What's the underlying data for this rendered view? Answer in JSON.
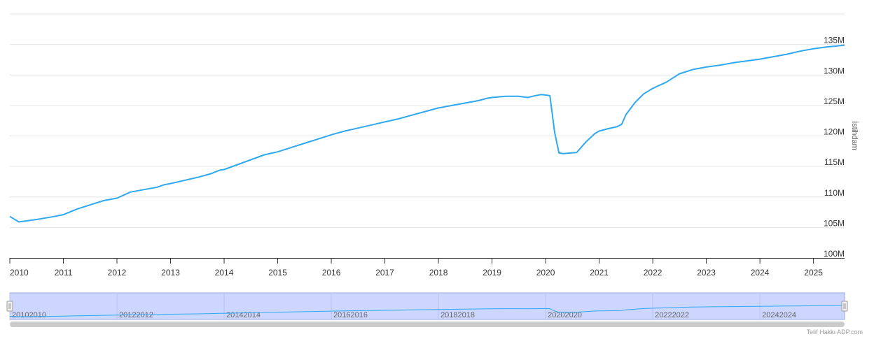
{
  "chart_data": {
    "type": "line",
    "title": "",
    "xlabel": "",
    "ylabel": "İstihdam",
    "x_tick_labels": [
      "2010",
      "2011",
      "2012",
      "2013",
      "2014",
      "2015",
      "2016",
      "2017",
      "2018",
      "2019",
      "2020",
      "2021",
      "2022",
      "2023",
      "2024",
      "2025"
    ],
    "y_tick_labels": [
      "100M",
      "105M",
      "110M",
      "115M",
      "120M",
      "125M",
      "130M",
      "135M"
    ],
    "y_ticks": [
      100,
      105,
      110,
      115,
      120,
      125,
      130,
      135
    ],
    "ylim": [
      100,
      140
    ],
    "xlim": [
      2010.0,
      2025.58
    ],
    "grid": "horizontal",
    "line_color": "#2ea8f0",
    "series": [
      {
        "x": [
          2010.0,
          2010.17,
          2010.5,
          2010.83,
          2011.0,
          2011.25,
          2011.5,
          2011.75,
          2012.0,
          2012.25,
          2012.5,
          2012.75,
          2012.88,
          2013.0,
          2013.25,
          2013.5,
          2013.75,
          2013.92,
          2014.0,
          2014.25,
          2014.5,
          2014.75,
          2015.0,
          2015.25,
          2015.5,
          2015.75,
          2016.0,
          2016.25,
          2016.5,
          2016.75,
          2017.0,
          2017.25,
          2017.5,
          2017.75,
          2018.0,
          2018.25,
          2018.5,
          2018.75,
          2018.92,
          2019.0,
          2019.25,
          2019.5,
          2019.67,
          2019.75,
          2019.92,
          2020.0,
          2020.08,
          2020.17,
          2020.25,
          2020.33,
          2020.58,
          2020.75,
          2020.92,
          2021.0,
          2021.17,
          2021.33,
          2021.42,
          2021.5,
          2021.67,
          2021.83,
          2022.0,
          2022.25,
          2022.5,
          2022.75,
          2023.0,
          2023.25,
          2023.5,
          2023.75,
          2024.0,
          2024.25,
          2024.5,
          2024.75,
          2025.0,
          2025.25,
          2025.5,
          2025.58
        ],
        "values": [
          106.8,
          105.9,
          106.3,
          106.8,
          107.1,
          108.0,
          108.7,
          109.4,
          109.8,
          110.8,
          111.2,
          111.6,
          112.0,
          112.2,
          112.7,
          113.2,
          113.8,
          114.4,
          114.5,
          115.3,
          116.1,
          116.9,
          117.4,
          118.1,
          118.8,
          119.5,
          120.2,
          120.8,
          121.3,
          121.8,
          122.3,
          122.8,
          123.4,
          124.0,
          124.6,
          125.0,
          125.4,
          125.8,
          126.2,
          126.3,
          126.5,
          126.5,
          126.3,
          126.5,
          126.8,
          126.7,
          126.6,
          120.5,
          117.2,
          117.1,
          117.3,
          119.0,
          120.4,
          120.8,
          121.2,
          121.5,
          121.9,
          123.5,
          125.5,
          126.9,
          127.8,
          128.8,
          130.2,
          130.9,
          131.3,
          131.6,
          132.0,
          132.3,
          132.6,
          133.0,
          133.4,
          133.9,
          134.3,
          134.6,
          134.8,
          134.9
        ]
      }
    ],
    "navigator": {
      "labels": [
        "20102010",
        "20122012",
        "20142014",
        "20162016",
        "20182018",
        "20202020",
        "20222022",
        "20242024"
      ],
      "tick_years": [
        2010,
        2012,
        2014,
        2016,
        2018,
        2020,
        2022,
        2024
      ],
      "fill_color": "#ccd6ff",
      "outline_color": "#9aa8e0"
    }
  },
  "credit_text": "Telif Hakkı ADP.com"
}
